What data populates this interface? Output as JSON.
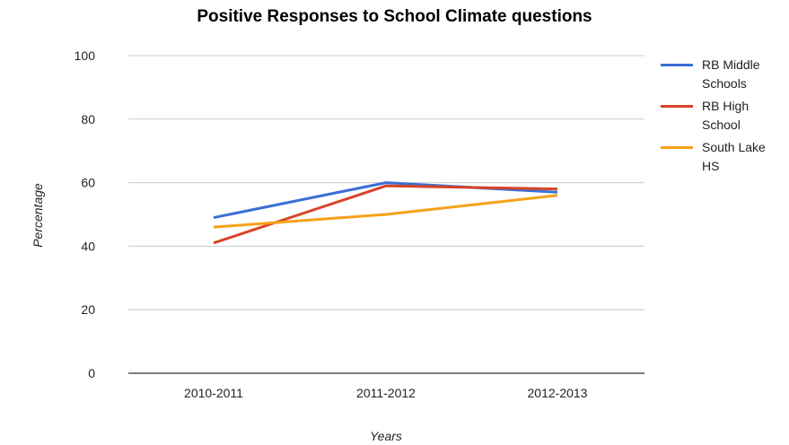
{
  "chart_data": {
    "type": "line",
    "title": "Positive Responses to School Climate questions",
    "xlabel": "Years",
    "ylabel": "Percentage",
    "categories": [
      "2010-2011",
      "2011-2012",
      "2012-2013"
    ],
    "ylim": [
      0,
      100
    ],
    "yticks": [
      0,
      20,
      40,
      60,
      80,
      100
    ],
    "grid": true,
    "legend_position": "right",
    "series": [
      {
        "name": "RB Middle Schools",
        "color": "#3b6fd6",
        "values": [
          49,
          60,
          57
        ]
      },
      {
        "name": "RB High School",
        "color": "#d64428",
        "values": [
          41,
          59,
          58
        ]
      },
      {
        "name": "South Lake HS",
        "color": "#f7a11a",
        "values": [
          46,
          50,
          56
        ]
      }
    ]
  }
}
